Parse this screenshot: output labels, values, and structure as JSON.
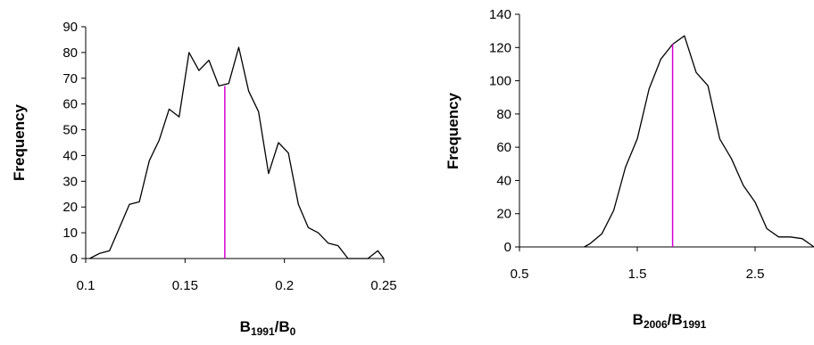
{
  "chart_data": [
    {
      "type": "line",
      "xlabel_parts": [
        {
          "text": "B",
          "sub": false
        },
        {
          "text": "1991",
          "sub": true
        },
        {
          "text": "/B",
          "sub": false
        },
        {
          "text": "0",
          "sub": true
        }
      ],
      "ylabel": "Frequency",
      "xlim": [
        0.1,
        0.25
      ],
      "ylim": [
        0,
        90
      ],
      "xticks": [
        "0.1",
        "0.15",
        "0.2",
        "0.25"
      ],
      "xtick_values": [
        0.1,
        0.15,
        0.2,
        0.25
      ],
      "yticks": [
        "0",
        "10",
        "20",
        "30",
        "40",
        "50",
        "60",
        "70",
        "80",
        "90"
      ],
      "ytick_values": [
        0,
        10,
        20,
        30,
        40,
        50,
        60,
        70,
        80,
        90
      ],
      "grid": false,
      "series": [
        {
          "color": "#000000",
          "x": [
            0.102,
            0.107,
            0.112,
            0.117,
            0.122,
            0.127,
            0.132,
            0.137,
            0.142,
            0.147,
            0.152,
            0.157,
            0.162,
            0.167,
            0.172,
            0.177,
            0.182,
            0.187,
            0.192,
            0.197,
            0.202,
            0.207,
            0.212,
            0.217,
            0.222,
            0.227,
            0.232,
            0.237,
            0.242,
            0.247,
            0.25
          ],
          "y": [
            0,
            2,
            3,
            12,
            21,
            22,
            38,
            46,
            58,
            55,
            80,
            73,
            77,
            67,
            68,
            82,
            65,
            57,
            33,
            45,
            41,
            21,
            12,
            10,
            6,
            5,
            0,
            0,
            0,
            3,
            0
          ]
        }
      ],
      "marker_line": {
        "x": 0.17,
        "y": 67,
        "color": "#d400d4"
      }
    },
    {
      "type": "line",
      "xlabel_parts": [
        {
          "text": "B",
          "sub": false
        },
        {
          "text": "2006",
          "sub": true
        },
        {
          "text": "/B",
          "sub": false
        },
        {
          "text": "1991",
          "sub": true
        }
      ],
      "ylabel": "Frequency",
      "xlim": [
        0.5,
        3.0
      ],
      "ylim": [
        0,
        140
      ],
      "xticks": [
        "0.5",
        "1.5",
        "2.5"
      ],
      "xtick_values": [
        0.5,
        1.5,
        2.5
      ],
      "yticks": [
        "0",
        "20",
        "40",
        "60",
        "80",
        "100",
        "120",
        "140"
      ],
      "ytick_values": [
        0,
        20,
        40,
        60,
        80,
        100,
        120,
        140
      ],
      "grid": false,
      "series": [
        {
          "color": "#000000",
          "x": [
            1.05,
            1.1,
            1.2,
            1.3,
            1.4,
            1.5,
            1.6,
            1.7,
            1.8,
            1.9,
            2.0,
            2.1,
            2.2,
            2.3,
            2.4,
            2.5,
            2.6,
            2.7,
            2.8,
            2.9,
            3.0
          ],
          "y": [
            0,
            2,
            8,
            22,
            48,
            65,
            95,
            113,
            122,
            127,
            105,
            97,
            65,
            53,
            37,
            27,
            11,
            6,
            6,
            5,
            0
          ]
        }
      ],
      "marker_line": {
        "x": 1.8,
        "y": 122,
        "color": "#d400d4"
      }
    }
  ]
}
